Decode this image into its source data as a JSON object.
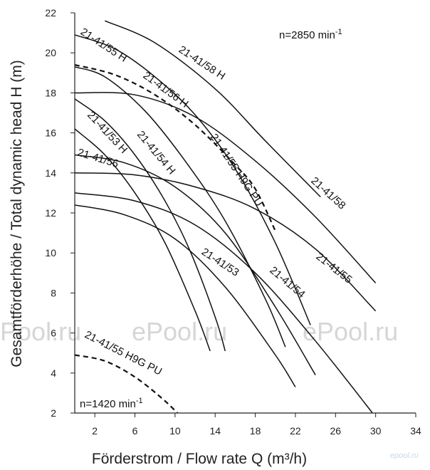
{
  "chart_data": {
    "type": "line",
    "xlabel": "Förderstrom / Flow rate Q (m³/h)",
    "ylabel": "Gesamtförderhöhe / Total dynamic head H (m)",
    "xlim": [
      0,
      34
    ],
    "ylim": [
      2,
      22
    ],
    "xticks": [
      2,
      6,
      10,
      14,
      18,
      22,
      26,
      30,
      34
    ],
    "yticks": [
      2,
      4,
      6,
      8,
      10,
      12,
      14,
      16,
      18,
      20,
      22
    ],
    "grid": false,
    "speed_labels": [
      {
        "text": "n=2850 min",
        "sup": "-1"
      },
      {
        "text": "n=1420 min",
        "sup": "-1"
      }
    ],
    "watermarks": [
      "ePool.ru",
      "ePool.ru",
      "ePool.ru"
    ],
    "logo": "epool.ru",
    "series": [
      {
        "name": "21-41/58 H",
        "dashed": false,
        "points": [
          [
            3,
            21.6
          ],
          [
            8,
            20.5
          ],
          [
            14,
            18.2
          ],
          [
            19,
            15.6
          ],
          [
            24.5,
            12.8
          ]
        ]
      },
      {
        "name": "21-41/58",
        "dashed": false,
        "points": [
          [
            0,
            18.0
          ],
          [
            6,
            17.9
          ],
          [
            12,
            16.8
          ],
          [
            18,
            14.6
          ],
          [
            24,
            11.8
          ],
          [
            30,
            8.5
          ]
        ]
      },
      {
        "name": "21-41/55 H",
        "dashed": false,
        "points": [
          [
            0,
            20.9
          ],
          [
            4,
            20.2
          ],
          [
            8,
            18.8
          ],
          [
            12,
            16.9
          ],
          [
            16,
            14.2
          ],
          [
            20,
            10.5
          ],
          [
            23.5,
            6.4
          ]
        ]
      },
      {
        "name": "21-41/56 H",
        "dashed": false,
        "points": [
          [
            0,
            19.3
          ],
          [
            3,
            18.8
          ],
          [
            7,
            17.1
          ],
          [
            11,
            14.6
          ],
          [
            15,
            11.6
          ],
          [
            19,
            7.7
          ],
          [
            21,
            5.3
          ]
        ]
      },
      {
        "name": "21-41/55 H9G PU",
        "dashed": true,
        "points": [
          [
            0,
            19.4
          ],
          [
            4,
            18.9
          ],
          [
            8,
            17.9
          ],
          [
            12,
            16.4
          ],
          [
            16,
            14.4
          ],
          [
            18,
            13.2
          ],
          [
            20,
            11.1
          ]
        ]
      },
      {
        "name": "21-41/54 H",
        "dashed": false,
        "points": [
          [
            0,
            17.7
          ],
          [
            3,
            16.6
          ],
          [
            6,
            14.9
          ],
          [
            9,
            12.6
          ],
          [
            11.5,
            10.1
          ],
          [
            14,
            6.8
          ],
          [
            15,
            5.1
          ]
        ]
      },
      {
        "name": "21-41/53 H",
        "dashed": false,
        "points": [
          [
            0,
            16.2
          ],
          [
            3,
            14.9
          ],
          [
            6,
            13.0
          ],
          [
            9,
            10.5
          ],
          [
            12,
            7.1
          ],
          [
            13.5,
            5.1
          ]
        ]
      },
      {
        "name": "21-41/55",
        "dashed": false,
        "points": [
          [
            0,
            14.0
          ],
          [
            6,
            13.9
          ],
          [
            12,
            13.3
          ],
          [
            18,
            12.2
          ],
          [
            24,
            10.2
          ],
          [
            30,
            7.1
          ]
        ]
      },
      {
        "name": "21-41/56",
        "dashed": false,
        "points": [
          [
            0,
            14.9
          ],
          [
            5,
            14.5
          ],
          [
            10,
            13.3
          ],
          [
            15,
            11.0
          ],
          [
            20,
            7.3
          ],
          [
            24,
            3.9
          ]
        ]
      },
      {
        "name": "21-41/54",
        "dashed": false,
        "points": [
          [
            0,
            13.0
          ],
          [
            6,
            12.6
          ],
          [
            12,
            11.4
          ],
          [
            18,
            9.0
          ],
          [
            24,
            5.6
          ],
          [
            30,
            1.8
          ]
        ]
      },
      {
        "name": "21-41/53",
        "dashed": false,
        "points": [
          [
            0,
            12.4
          ],
          [
            5,
            11.9
          ],
          [
            10,
            10.7
          ],
          [
            15,
            8.3
          ],
          [
            20,
            4.9
          ],
          [
            22,
            3.3
          ]
        ]
      },
      {
        "name": "21-41/55 H9G PU",
        "dashed": true,
        "points": [
          [
            0,
            4.9
          ],
          [
            3,
            4.6
          ],
          [
            6,
            3.8
          ],
          [
            9,
            2.6
          ],
          [
            11,
            1.6
          ]
        ]
      }
    ]
  }
}
